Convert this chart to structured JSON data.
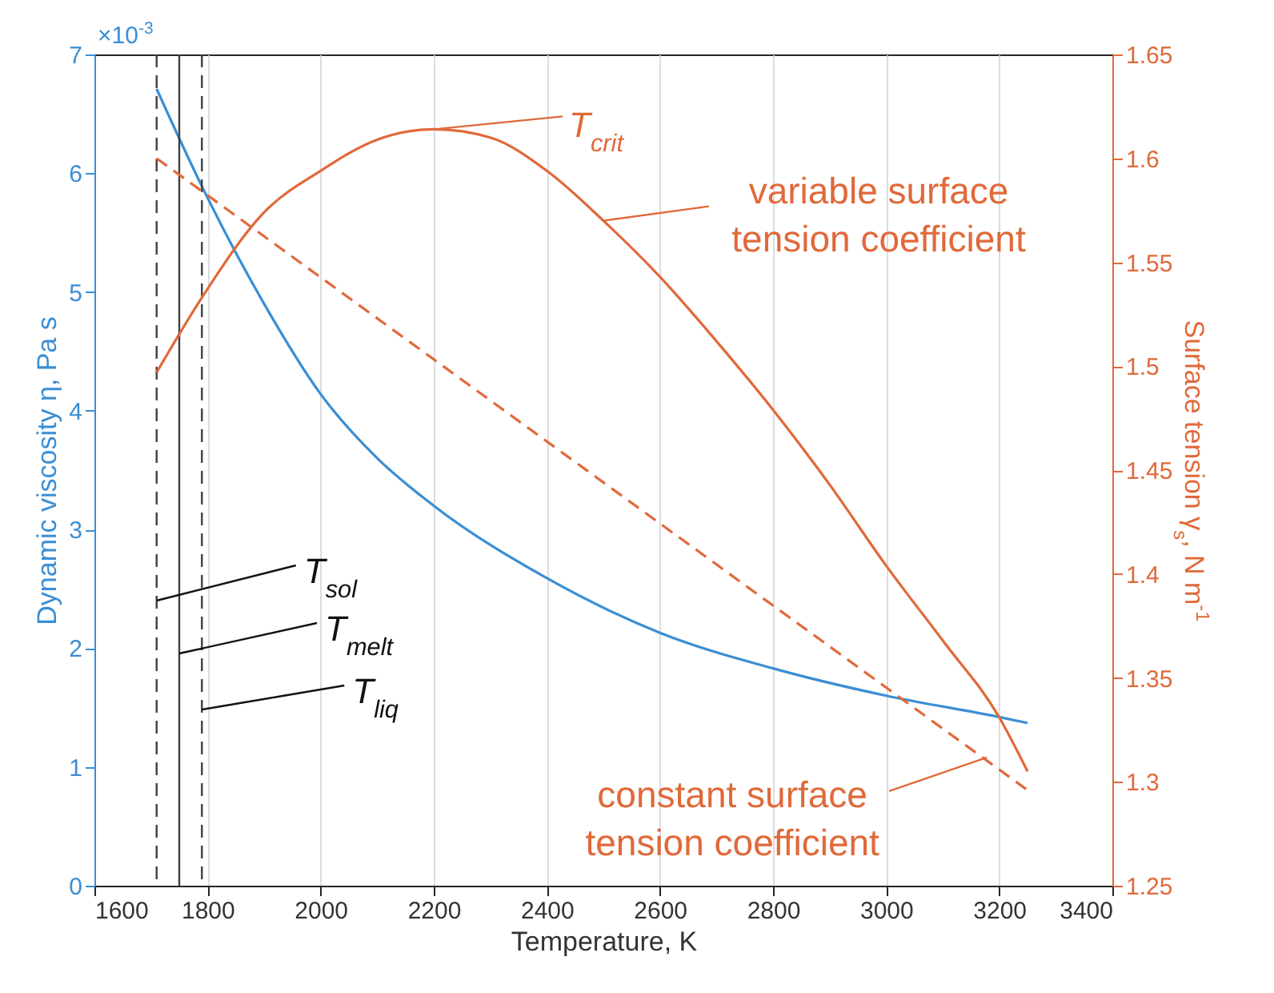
{
  "chart_data": {
    "type": "line",
    "xlabel": "Temperature, K",
    "ylabel": "Dynamic viscosity η, Pa s",
    "y2label": "Surface tension γ$_{s}$, N m$^{-1}$",
    "xlim": [
      1600,
      3400
    ],
    "xticks": [
      1600,
      1800,
      2000,
      2200,
      2400,
      2600,
      2800,
      3000,
      3200,
      3400
    ],
    "ylim": [
      0,
      7
    ],
    "yticks": [
      0,
      1,
      2,
      3,
      4,
      5,
      6,
      7
    ],
    "y2lim": [
      1.25,
      1.65
    ],
    "y2ticks": [
      1.25,
      1.3,
      1.35,
      1.4,
      1.45,
      1.5,
      1.55,
      1.6,
      1.65
    ],
    "grid": "x",
    "series": [
      {
        "color": "#3b8ed4",
        "x": [
          1710,
          1790,
          1900,
          2000,
          2100,
          2200,
          2400,
          2600,
          2800,
          3000,
          3200,
          3250
        ],
        "values": [
          6.71,
          5.89,
          4.9,
          4.14,
          3.6,
          3.2,
          2.59,
          2.13,
          1.83,
          1.6,
          1.42,
          1.37
        ]
      },
      {
        "color": "#e0693a",
        "axis": "y2",
        "x": [
          1710,
          1790,
          1900,
          2000,
          2100,
          2200,
          2300,
          2400,
          2500,
          2600,
          2700,
          2800,
          2900,
          3000,
          3100,
          3200,
          3250
        ],
        "values": [
          1.497,
          1.533,
          1.574,
          1.594,
          1.609,
          1.614,
          1.61,
          1.594,
          1.57,
          1.543,
          1.512,
          1.479,
          1.443,
          1.404,
          1.368,
          1.331,
          1.305
        ]
      },
      {
        "color": "#e0693a",
        "axis": "y2",
        "line_style": "dashed",
        "x": [
          1710,
          3250
        ],
        "values": [
          1.6,
          1.296
        ]
      }
    ],
    "ref_lines": [
      {
        "axis": "x",
        "value": 1710,
        "label": "T$_{sol}$",
        "color": "#404040",
        "line_style": "dashed"
      },
      {
        "axis": "x",
        "value": 1750,
        "label": "T$_{melt}$",
        "color": "#404040",
        "line_style": "solid"
      },
      {
        "axis": "x",
        "value": 1790,
        "label": "T$_{liq}$",
        "color": "#404040",
        "line_style": "dashed"
      }
    ],
    "annotations": [
      "×10$^{-3}$",
      "T$_{crit}$",
      "variable surface tension coefficient",
      {
        "text": "constant surface tension coefficient",
        "x": 3178,
        "y": 1.08
      }
    ]
  }
}
